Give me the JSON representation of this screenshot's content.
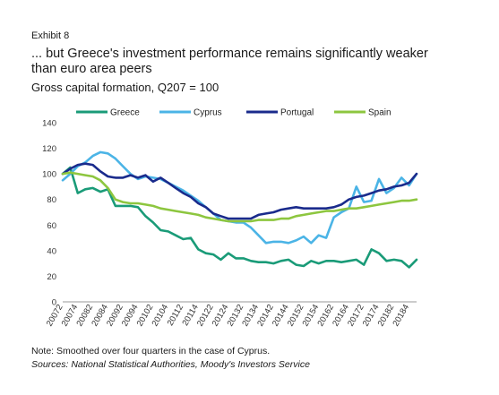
{
  "exhibit": "Exhibit 8",
  "title": "... but Greece's investment performance remains significantly weaker than euro area peers",
  "subtitle": "Gross capital formation, Q207 = 100",
  "note": "Note: Smoothed over four quarters in the case of Cyprus.",
  "sources": "Sources: National Statistical Authorities, Moody's Investors Service",
  "chart_data": {
    "type": "line",
    "title": "",
    "xlabel": "",
    "ylabel": "",
    "ylim": [
      0,
      140
    ],
    "yticks": [
      0,
      20,
      40,
      60,
      80,
      100,
      120,
      140
    ],
    "grid": false,
    "legend_position": "top",
    "x": [
      "20072",
      "20073",
      "20074",
      "20081",
      "20082",
      "20083",
      "20084",
      "20091",
      "20092",
      "20093",
      "20094",
      "20101",
      "20102",
      "20103",
      "20104",
      "20111",
      "20112",
      "20113",
      "20114",
      "20121",
      "20122",
      "20123",
      "20124",
      "20131",
      "20132",
      "20133",
      "20134",
      "20141",
      "20142",
      "20143",
      "20144",
      "20151",
      "20152",
      "20153",
      "20154",
      "20161",
      "20162",
      "20163",
      "20164",
      "20171",
      "20172",
      "20173",
      "20174",
      "20181",
      "20182",
      "20183",
      "20184",
      "20191"
    ],
    "xtick_labels": [
      "20072",
      "20074",
      "20082",
      "20084",
      "20092",
      "20094",
      "20102",
      "20104",
      "20112",
      "20114",
      "20122",
      "20124",
      "20132",
      "20134",
      "20142",
      "20144",
      "20152",
      "20154",
      "20162",
      "20164",
      "20172",
      "20174",
      "20182",
      "20184"
    ],
    "series": [
      {
        "name": "Greece",
        "color": "#1a9b78",
        "values": [
          100,
          105,
          85,
          88,
          89,
          86,
          88,
          75,
          75,
          75,
          74,
          67,
          62,
          56,
          55,
          52,
          49,
          50,
          41,
          38,
          37,
          33,
          38,
          34,
          34,
          32,
          31,
          31,
          30,
          32,
          33,
          29,
          28,
          32,
          30,
          32,
          32,
          31,
          32,
          33,
          29,
          41,
          38,
          32,
          33,
          32,
          27,
          33
        ]
      },
      {
        "name": "Cyprus",
        "color": "#4bb4e6",
        "values": [
          95,
          100,
          106,
          109,
          114,
          117,
          116,
          112,
          106,
          100,
          96,
          98,
          97,
          96,
          93,
          90,
          87,
          83,
          79,
          74,
          69,
          64,
          63,
          62,
          62,
          58,
          52,
          46,
          47,
          47,
          46,
          48,
          51,
          46,
          52,
          50,
          66,
          70,
          73,
          90,
          78,
          79,
          96,
          85,
          89,
          97,
          91,
          100
        ]
      },
      {
        "name": "Portugal",
        "color": "#1a2b8c",
        "values": [
          100,
          104,
          107,
          108,
          107,
          102,
          98,
          97,
          97,
          99,
          97,
          99,
          94,
          97,
          93,
          89,
          85,
          82,
          77,
          74,
          69,
          67,
          65,
          65,
          65,
          65,
          68,
          69,
          70,
          72,
          73,
          74,
          73,
          73,
          73,
          73,
          74,
          76,
          80,
          82,
          83,
          85,
          87,
          88,
          90,
          91,
          93,
          100
        ]
      },
      {
        "name": "Spain",
        "color": "#8dc63f",
        "values": [
          100,
          101,
          100,
          99,
          98,
          95,
          89,
          80,
          78,
          77,
          77,
          76,
          75,
          73,
          72,
          71,
          70,
          69,
          68,
          66,
          65,
          64,
          63,
          63,
          63,
          63,
          64,
          64,
          64,
          65,
          65,
          67,
          68,
          69,
          70,
          71,
          71,
          72,
          73,
          73,
          74,
          75,
          76,
          77,
          78,
          79,
          79,
          80
        ]
      }
    ]
  }
}
